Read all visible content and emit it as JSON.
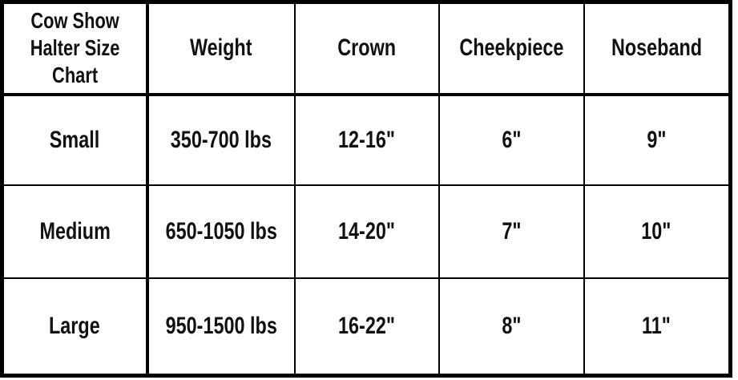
{
  "table": {
    "corner_title": "Cow Show\nHalter Size\nChart",
    "columns": [
      "Weight",
      "Crown",
      "Cheekpiece",
      "Noseband"
    ],
    "rows": [
      {
        "size": "Small",
        "weight": "350-700 lbs",
        "crown": "12-16\"",
        "cheekpiece": "6\"",
        "noseband": "9\""
      },
      {
        "size": "Medium",
        "weight": "650-1050 lbs",
        "crown": "14-20\"",
        "cheekpiece": "7\"",
        "noseband": "10\""
      },
      {
        "size": "Large",
        "weight": "950-1500 lbs",
        "crown": "16-22\"",
        "cheekpiece": "8\"",
        "noseband": "11\""
      }
    ]
  },
  "colors": {
    "border": "#000000",
    "text": "#111111",
    "background": "#ffffff"
  },
  "chart_data": {
    "type": "table",
    "title": "Cow Show Halter Size Chart",
    "columns": [
      "Size",
      "Weight",
      "Crown",
      "Cheekpiece",
      "Noseband"
    ],
    "rows": [
      [
        "Small",
        "350-700 lbs",
        "12-16\"",
        "6\"",
        "9\""
      ],
      [
        "Medium",
        "650-1050 lbs",
        "14-20\"",
        "7\"",
        "10\""
      ],
      [
        "Large",
        "950-1500 lbs",
        "16-22\"",
        "8\"",
        "11\""
      ]
    ],
    "layout": {
      "grid": true,
      "header_row": true,
      "header_column": true,
      "border_color": "#000000",
      "background": "#ffffff"
    }
  }
}
